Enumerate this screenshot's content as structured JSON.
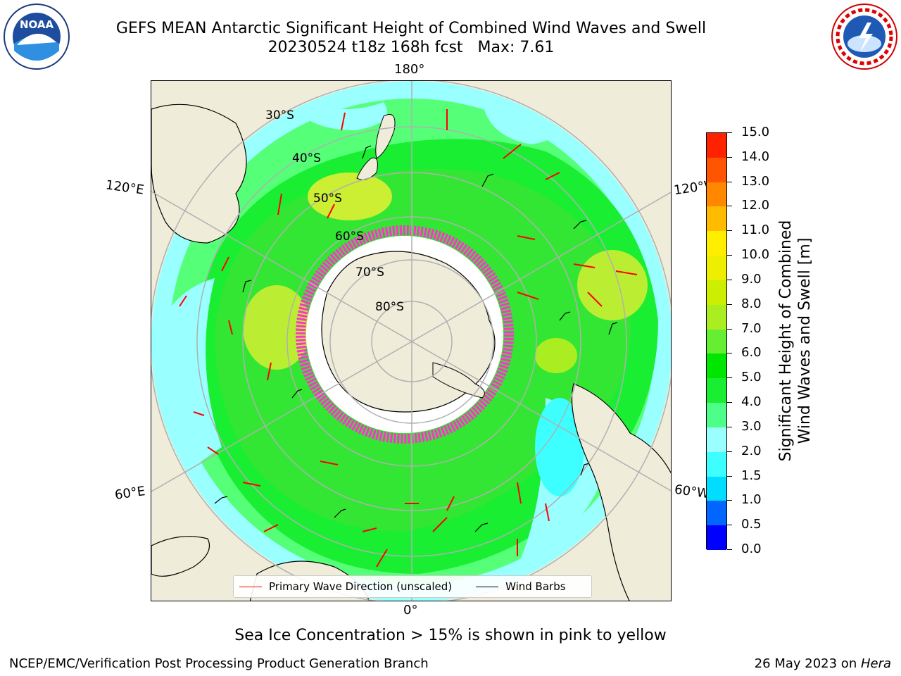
{
  "header": {
    "title": "GEFS MEAN Antarctic Significant Height of Combined Wind Waves and Swell",
    "subtitle_run": "20230524 t18z 168h fcst",
    "subtitle_max": "Max: 7.61"
  },
  "logos": {
    "noaa_text": "NOAA",
    "noaa_ring": "NATIONAL OCEANIC AND ATMOSPHERIC ADMINISTRATION · U.S. DEPARTMENT OF COMMERCE",
    "nws_ring": "NATIONAL WEATHER SERVICE"
  },
  "map": {
    "longitude_labels": {
      "top": "180°",
      "bottom": "0°",
      "upper_left": "120°E",
      "upper_right": "120°W",
      "lower_left": "60°E",
      "lower_right": "60°W"
    },
    "latitude_labels": [
      "30°S",
      "40°S",
      "50°S",
      "60°S",
      "70°S",
      "80°S"
    ],
    "legend": {
      "wave_direction": "Primary Wave Direction (unscaled)",
      "wind_barbs": "Wind Barbs"
    },
    "colors": {
      "land": "#efedda",
      "sea_ice": "#ff33cc",
      "wave_arrow": "#ff0000",
      "wind_barb": "#000000"
    }
  },
  "colorbar": {
    "label_line1": "Significant Height of Combined",
    "label_line2": "Wind Waves and Swell [m]",
    "ticks": [
      "0.0",
      "0.5",
      "1.0",
      "1.5",
      "2.0",
      "3.0",
      "4.0",
      "5.0",
      "6.0",
      "7.0",
      "8.0",
      "9.0",
      "10.0",
      "11.0",
      "12.0",
      "13.0",
      "14.0",
      "15.0"
    ],
    "colors": [
      "#0000ff",
      "#0066ff",
      "#00ddff",
      "#3dffff",
      "#99ffff",
      "#4dff88",
      "#1aee33",
      "#00e600",
      "#66ee33",
      "#aaee22",
      "#ccee00",
      "#eeee00",
      "#ffee00",
      "#ffbb00",
      "#ff8800",
      "#ff5500",
      "#ff2200"
    ]
  },
  "footer": {
    "note": "Sea Ice Concentration > 15% is shown in pink to yellow",
    "left": "NCEP/EMC/Verification Post Processing Product Generation Branch",
    "right_date": "26 May 2023 on ",
    "right_host": "Hera"
  }
}
